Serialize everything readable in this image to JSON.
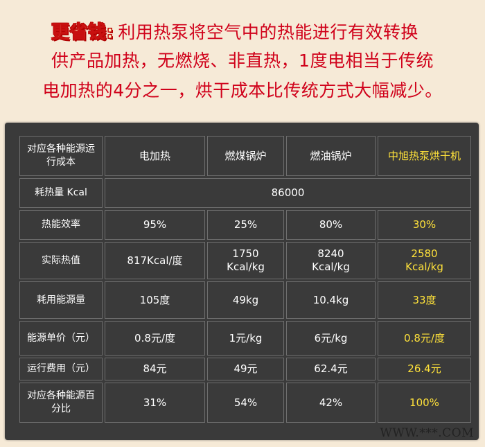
{
  "intro": {
    "badge": "更省钱:",
    "line1": "利用热泵将空气中的热能进行有效转换",
    "line2": "供产品加热，无燃烧、非直热，1度电相当于传统",
    "line3": "电加热的4分之一，烘干成本比传统方式大幅减少。"
  },
  "table": {
    "headers": [
      "对应各种能源运行成本",
      "电加热",
      "燃煤锅炉",
      "燃油锅炉",
      "中旭热泵烘干机"
    ],
    "heat_row": {
      "label": "耗热量 Kcal",
      "value": "86000"
    },
    "rows": [
      {
        "label": "热能效率",
        "cells": [
          "95%",
          "25%",
          "80%",
          "30%"
        ]
      },
      {
        "label": "实际热值",
        "cells": [
          "817Kcal/度",
          "1750 Kcal/kg",
          "8240 Kcal/kg",
          "2580 Kcal/kg"
        ]
      },
      {
        "label": "耗用能源量",
        "cells": [
          "105度",
          "49kg",
          "10.4kg",
          "33度"
        ]
      },
      {
        "label": "能源单价（元）",
        "cells": [
          "0.8元/度",
          "1元/kg",
          "6元/kg",
          "0.8元/度"
        ]
      },
      {
        "label": "运行费用（元）",
        "cells": [
          "84元",
          "49元",
          "62.4元",
          "26.4元"
        ]
      },
      {
        "label": "对应各种能源百分比",
        "cells": [
          "31%",
          "54%",
          "42%",
          "100%"
        ]
      }
    ]
  },
  "highlight_color": "#ffe23a",
  "accent_red": "#d0021b",
  "watermark": "WWW.***.COM"
}
